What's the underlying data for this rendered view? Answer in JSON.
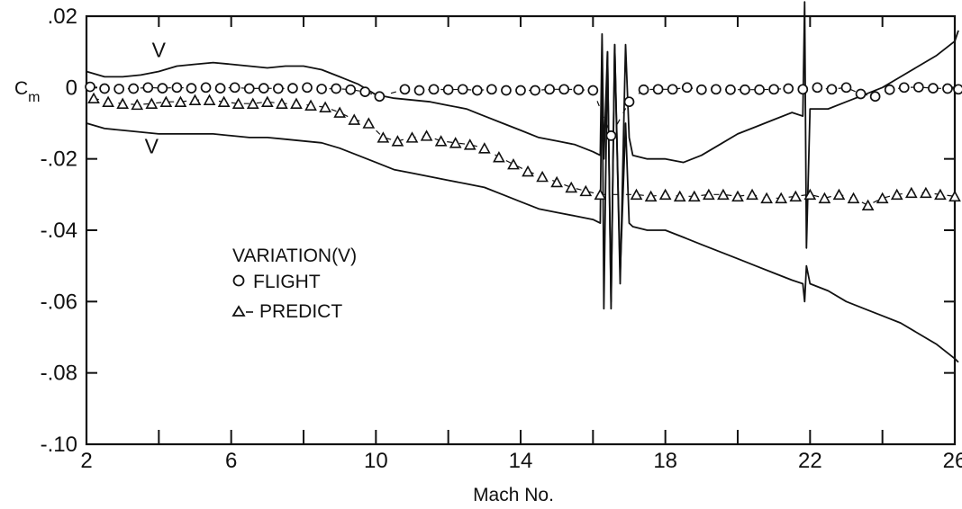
{
  "chart_data": {
    "type": "line",
    "xlabel": "Mach No.",
    "ylabel": "C",
    "ylabel_sub": "m",
    "xlim": [
      2,
      26
    ],
    "ylim": [
      -0.1,
      0.02
    ],
    "x_ticks": [
      2,
      6,
      10,
      14,
      18,
      22,
      26
    ],
    "x_tick_labels": [
      "2",
      "6",
      "10",
      "14",
      "18",
      "22",
      "26"
    ],
    "y_ticks": [
      0.02,
      0,
      -0.02,
      -0.04,
      -0.06,
      -0.08,
      -0.1
    ],
    "y_tick_labels": [
      ".02",
      "0",
      "-.02",
      "-.04",
      "-.06",
      "-.08",
      "-.10"
    ],
    "grid": false,
    "legend": {
      "title": "VARIATION(V)",
      "placement": "lower-left",
      "entries": [
        {
          "symbol": "circle",
          "label": "FLIGHT"
        },
        {
          "symbol": "triangle",
          "label": "PREDICT"
        }
      ]
    },
    "variation_labels": [
      {
        "text": "V",
        "x": 4.0,
        "y": 0.0085
      },
      {
        "text": "V",
        "x": 3.8,
        "y": -0.0185
      }
    ],
    "series": [
      {
        "marker": "circle",
        "x": [
          2.1,
          2.5,
          2.9,
          3.3,
          3.7,
          4.1,
          4.5,
          4.9,
          5.3,
          5.7,
          6.1,
          6.5,
          6.9,
          7.3,
          7.7,
          8.1,
          8.5,
          8.9,
          9.3,
          9.7,
          10.1,
          10.8,
          11.2,
          11.6,
          12.0,
          12.4,
          12.8,
          13.2,
          13.6,
          14.0,
          14.4,
          14.8,
          15.2,
          15.6,
          16.0,
          16.5,
          17.0,
          17.4,
          17.8,
          18.2,
          18.6,
          19.0,
          19.4,
          19.8,
          20.2,
          20.6,
          21.0,
          21.4,
          21.8,
          22.2,
          22.6,
          23.0,
          23.4,
          23.8,
          24.2,
          24.6,
          25.0,
          25.4,
          25.8,
          26.1
        ],
        "values": [
          0.0002,
          -0.0003,
          -0.0004,
          -0.0003,
          0.0,
          -0.0002,
          0.0,
          -0.0002,
          0.0,
          -0.0002,
          0.0,
          -0.0003,
          -0.0002,
          -0.0003,
          -0.0002,
          0.0,
          -0.0004,
          -0.0003,
          -0.0006,
          -0.0012,
          -0.0025,
          -0.0005,
          -0.0008,
          -0.0005,
          -0.0006,
          -0.0005,
          -0.0008,
          -0.0005,
          -0.0008,
          -0.0008,
          -0.0008,
          -0.0005,
          -0.0005,
          -0.0006,
          -0.0008,
          -0.0135,
          -0.004,
          -0.0006,
          -0.0005,
          -0.0005,
          0.0,
          -0.0006,
          -0.0005,
          -0.0006,
          -0.0006,
          -0.0006,
          -0.0005,
          -0.0003,
          -0.0005,
          0.0,
          -0.0005,
          0.0,
          -0.0018,
          -0.0025,
          -0.0006,
          0.0,
          0.0001,
          -0.0002,
          -0.0003,
          -0.0005
        ]
      },
      {
        "marker": "triangle",
        "x": [
          2.2,
          2.6,
          3.0,
          3.4,
          3.8,
          4.2,
          4.6,
          5.0,
          5.4,
          5.8,
          6.2,
          6.6,
          7.0,
          7.4,
          7.8,
          8.2,
          8.6,
          9.0,
          9.4,
          9.8,
          10.2,
          10.6,
          11.0,
          11.4,
          11.8,
          12.2,
          12.6,
          13.0,
          13.4,
          13.8,
          14.2,
          14.6,
          15.0,
          15.4,
          15.8,
          16.2,
          17.2,
          17.6,
          18.0,
          18.4,
          18.8,
          19.2,
          19.6,
          20.0,
          20.4,
          20.8,
          21.2,
          21.6,
          22.0,
          22.4,
          22.8,
          23.2,
          23.6,
          24.0,
          24.4,
          24.8,
          25.2,
          25.6,
          26.0
        ],
        "values": [
          -0.003,
          -0.004,
          -0.0045,
          -0.0048,
          -0.0045,
          -0.004,
          -0.004,
          -0.0035,
          -0.0035,
          -0.004,
          -0.0045,
          -0.0045,
          -0.004,
          -0.0045,
          -0.0045,
          -0.005,
          -0.0055,
          -0.007,
          -0.009,
          -0.01,
          -0.014,
          -0.015,
          -0.014,
          -0.0135,
          -0.015,
          -0.0155,
          -0.016,
          -0.017,
          -0.0195,
          -0.0215,
          -0.0235,
          -0.025,
          -0.0265,
          -0.028,
          -0.029,
          -0.03,
          -0.03,
          -0.0305,
          -0.03,
          -0.0305,
          -0.0305,
          -0.03,
          -0.03,
          -0.0305,
          -0.03,
          -0.031,
          -0.031,
          -0.0305,
          -0.03,
          -0.031,
          -0.03,
          -0.031,
          -0.033,
          -0.031,
          -0.03,
          -0.0295,
          -0.0295,
          -0.03,
          -0.0305
        ]
      },
      {
        "style": "line",
        "x": [
          2.0,
          2.5,
          3.0,
          3.5,
          4.0,
          4.5,
          5.0,
          5.5,
          6.0,
          6.5,
          7.0,
          7.5,
          8.0,
          8.5,
          9.0,
          9.5,
          10.0,
          10.5,
          11.0,
          11.5,
          12.0,
          12.5,
          13.0,
          13.5,
          14.0,
          14.5,
          15.0,
          15.5,
          16.0,
          16.2,
          16.25,
          16.3,
          16.4,
          16.5,
          16.6,
          16.75,
          16.9,
          17.0,
          17.1,
          17.5,
          18.0,
          18.5,
          19.0,
          19.5,
          20.0,
          20.5,
          21.0,
          21.5,
          21.8,
          21.85,
          21.9,
          22.0,
          22.5,
          23.0,
          23.5,
          24.0,
          24.5,
          25.0,
          25.5,
          26.0,
          26.1
        ],
        "values": [
          0.0045,
          0.003,
          0.003,
          0.0035,
          0.0045,
          0.006,
          0.0065,
          0.007,
          0.0065,
          0.006,
          0.0055,
          0.006,
          0.006,
          0.005,
          0.003,
          0.001,
          -0.002,
          -0.003,
          -0.0035,
          -0.004,
          -0.005,
          -0.006,
          -0.008,
          -0.01,
          -0.012,
          -0.014,
          -0.015,
          -0.016,
          -0.018,
          -0.019,
          0.015,
          -0.02,
          0.01,
          -0.062,
          0.012,
          -0.055,
          0.012,
          -0.014,
          -0.019,
          -0.02,
          -0.02,
          -0.021,
          -0.019,
          -0.016,
          -0.013,
          -0.011,
          -0.009,
          -0.007,
          -0.008,
          0.024,
          -0.045,
          -0.006,
          -0.006,
          -0.004,
          -0.002,
          0.0,
          0.003,
          0.006,
          0.009,
          0.013,
          0.016
        ]
      },
      {
        "style": "line",
        "x": [
          2.0,
          2.5,
          3.0,
          3.5,
          4.0,
          4.5,
          5.0,
          5.5,
          6.0,
          6.5,
          7.0,
          7.5,
          8.0,
          8.5,
          9.0,
          9.5,
          10.0,
          10.5,
          11.0,
          11.5,
          12.0,
          12.5,
          13.0,
          13.5,
          14.0,
          14.5,
          15.0,
          15.5,
          16.0,
          16.2,
          16.25,
          16.3,
          16.4,
          16.5,
          16.6,
          16.75,
          16.9,
          17.0,
          17.1,
          17.5,
          18.0,
          18.5,
          19.0,
          19.5,
          20.0,
          20.5,
          21.0,
          21.5,
          21.8,
          21.85,
          21.9,
          22.0,
          22.5,
          23.0,
          23.5,
          24.0,
          24.5,
          25.0,
          25.5,
          26.0,
          26.1
        ],
        "values": [
          -0.01,
          -0.0115,
          -0.012,
          -0.0125,
          -0.013,
          -0.013,
          -0.013,
          -0.013,
          -0.0135,
          -0.014,
          -0.014,
          -0.0145,
          -0.015,
          -0.0155,
          -0.017,
          -0.019,
          -0.021,
          -0.023,
          -0.024,
          -0.025,
          -0.026,
          -0.027,
          -0.028,
          -0.03,
          -0.032,
          -0.034,
          -0.035,
          -0.036,
          -0.037,
          -0.038,
          0.012,
          -0.062,
          0.01,
          -0.06,
          0.012,
          -0.052,
          -0.01,
          -0.038,
          -0.039,
          -0.04,
          -0.04,
          -0.042,
          -0.044,
          -0.046,
          -0.048,
          -0.05,
          -0.052,
          -0.054,
          -0.055,
          -0.06,
          -0.05,
          -0.055,
          -0.057,
          -0.06,
          -0.062,
          -0.064,
          -0.066,
          -0.069,
          -0.072,
          -0.076,
          -0.077
        ]
      }
    ]
  }
}
